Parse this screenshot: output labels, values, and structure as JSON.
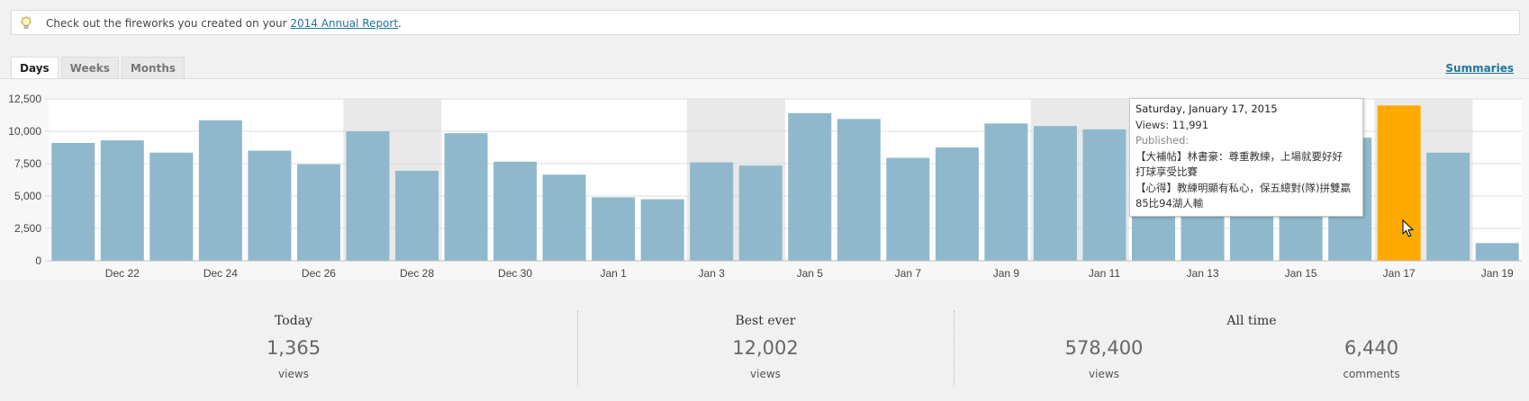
{
  "notice": {
    "text_before": "Check out the fireworks you created on your ",
    "link_text": "2014 Annual Report",
    "text_after": "."
  },
  "tabs": [
    {
      "label": "Days",
      "active": true
    },
    {
      "label": "Weeks",
      "active": false
    },
    {
      "label": "Months",
      "active": false
    }
  ],
  "summaries_label": "Summaries",
  "colors": {
    "bar": "#8fb8cc",
    "highlight": "#ffaa00",
    "band": "#e9e9e9"
  },
  "chart_data": {
    "type": "bar",
    "categories": [
      "Dec 21",
      "Dec 22",
      "Dec 23",
      "Dec 24",
      "Dec 25",
      "Dec 26",
      "Dec 27",
      "Dec 28",
      "Dec 29",
      "Dec 30",
      "Dec 31",
      "Jan 1",
      "Jan 2",
      "Jan 3",
      "Jan 4",
      "Jan 5",
      "Jan 6",
      "Jan 7",
      "Jan 8",
      "Jan 9",
      "Jan 10",
      "Jan 11",
      "Jan 12",
      "Jan 13",
      "Jan 14",
      "Jan 15",
      "Jan 16",
      "Jan 17",
      "Jan 18",
      "Jan 19"
    ],
    "values": [
      9100,
      9300,
      8350,
      10850,
      8500,
      7450,
      10000,
      6950,
      9850,
      7650,
      6650,
      4900,
      4750,
      7600,
      7350,
      11400,
      10950,
      7950,
      8750,
      10600,
      10400,
      10150,
      9000,
      9600,
      9900,
      10000,
      9500,
      11991,
      8350,
      1365
    ],
    "tick_labels": [
      "Dec 22",
      "Dec 24",
      "Dec 26",
      "Dec 28",
      "Dec 30",
      "Jan 1",
      "Jan 3",
      "Jan 5",
      "Jan 7",
      "Jan 9",
      "Jan 11",
      "Jan 13",
      "Jan 15",
      "Jan 17",
      "Jan 19"
    ],
    "y_ticks": [
      "0",
      "2,500",
      "5,000",
      "7,500",
      "10,000",
      "12,500"
    ],
    "ylim": [
      0,
      12500
    ],
    "highlight": "Jan 17",
    "weekend_bands": [
      [
        "Dec 27",
        "Dec 28"
      ],
      [
        "Jan 3",
        "Jan 4"
      ],
      [
        "Jan 10",
        "Jan 11"
      ],
      [
        "Jan 17",
        "Jan 18"
      ]
    ],
    "grid": true
  },
  "tooltip": {
    "date": "Saturday, January 17, 2015",
    "views": "Views: 11,991",
    "published_label": "Published:",
    "post1_line1": "【大補帖】林書豪：尊重教練，上場就要好好",
    "post1_line2": "打球享受比賽",
    "post2_line1": "【心得】教練明顯有私心，保五總對(隊)拼雙贏",
    "post2_line2": "85比94湖人輸"
  },
  "stats": {
    "today": {
      "label": "Today",
      "value": "1,365",
      "unit": "views"
    },
    "best": {
      "label": "Best ever",
      "value": "12,002",
      "unit": "views"
    },
    "all_time": {
      "label": "All time",
      "views_value": "578,400",
      "views_unit": "views",
      "comments_value": "6,440",
      "comments_unit": "comments"
    }
  }
}
